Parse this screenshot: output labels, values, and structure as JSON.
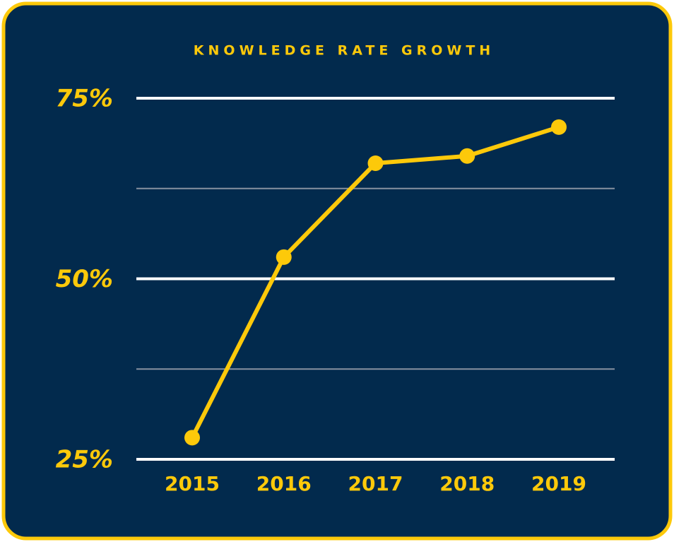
{
  "chart_data": {
    "type": "line",
    "title": "KNOWLEDGE RATE GROWTH",
    "categories": [
      "2015",
      "2016",
      "2017",
      "2018",
      "2019"
    ],
    "values": [
      28,
      53,
      66,
      67,
      71
    ],
    "color": "#fdc90a",
    "ylim": [
      25,
      75
    ],
    "yticks": [
      {
        "value": 25,
        "label": "25%"
      },
      {
        "value": 50,
        "label": "50%"
      },
      {
        "value": 75,
        "label": "75%"
      }
    ],
    "minor_yticks": [
      37.5,
      62.5
    ],
    "grid": true
  }
}
